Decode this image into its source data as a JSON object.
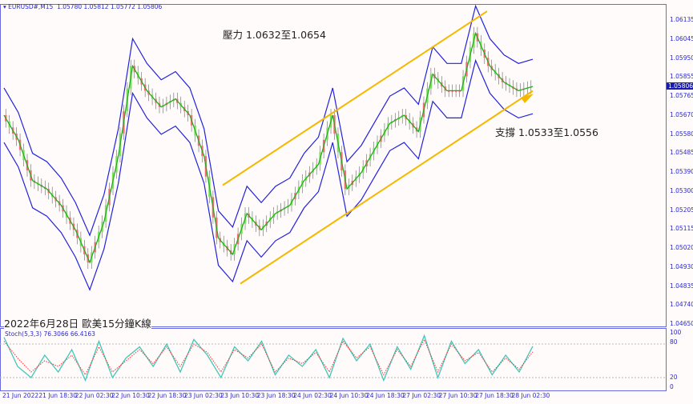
{
  "header": {
    "symbol": "EURUSD#,M15",
    "ohlc": "1.05780 1.05812 1.05772 1.05806"
  },
  "annotations": {
    "resistance": "壓力 1.0632至1.0654",
    "support": "支撐 1.0533至1.0556",
    "caption": "2022年6月28日 歐美15分鐘K線"
  },
  "stoch_label": "Stoch(5,3,3) 76.3066 66.4163",
  "current_price": "1.05806",
  "colors": {
    "price": "#22aa22",
    "bands": "#2222dd",
    "channel": "#f5b800",
    "stoch_main": "#40c8b8",
    "stoch_signal": "#ff3030",
    "axis": "#6a6ae0"
  },
  "chart_data": [
    {
      "type": "line",
      "title": "EURUSD#,M15",
      "price_ticks": [
        "1.06135",
        "1.06045",
        "1.05950",
        "1.05855",
        "1.05765",
        "1.05670",
        "1.05580",
        "1.05485",
        "1.05390",
        "1.05300",
        "1.05205",
        "1.05115",
        "1.05020",
        "1.04930",
        "1.04835",
        "1.04740",
        "1.04650"
      ],
      "ylim": [
        1.0465,
        1.06135
      ],
      "time_ticks": [
        "21 Jun 2022",
        "21 Jun 18:30",
        "22 Jun 02:30",
        "22 Jun 10:30",
        "22 Jun 18:30",
        "23 Jun 02:30",
        "23 Jun 10:30",
        "23 Jun 18:30",
        "24 Jun 02:30",
        "24 Jun 10:30",
        "24 Jun 18:30",
        "27 Jun 02:30",
        "27 Jun 10:30",
        "27 Jun 18:30",
        "28 Jun 02:30"
      ],
      "close": [
        1.05654,
        1.05537,
        1.05342,
        1.05302,
        1.05224,
        1.05107,
        1.04951,
        1.05146,
        1.05459,
        1.05889,
        1.05771,
        1.05693,
        1.05732,
        1.05654,
        1.05459,
        1.05068,
        1.0499,
        1.05185,
        1.05107,
        1.05185,
        1.05224,
        1.05342,
        1.05419,
        1.05654,
        1.05302,
        1.0538,
        1.05498,
        1.05615,
        1.05654,
        1.05576,
        1.0585,
        1.05771,
        1.05771,
        1.06045,
        1.05889,
        1.05811,
        1.05771,
        1.05791
      ],
      "bollinger_band_width": 0.0013,
      "channel": {
        "upper": [
          1.0532,
          1.0615
        ],
        "lower": [
          1.0485,
          1.0577
        ]
      }
    },
    {
      "type": "line",
      "title": "Stoch(5,3,3)",
      "ylim": [
        0,
        100
      ],
      "levels": [
        20,
        80
      ],
      "ticks": [
        "100",
        "80",
        "20",
        "0"
      ],
      "main": [
        92,
        40,
        20,
        60,
        30,
        70,
        15,
        85,
        20,
        55,
        75,
        40,
        80,
        30,
        88,
        60,
        20,
        75,
        50,
        85,
        25,
        60,
        40,
        70,
        20,
        90,
        50,
        80,
        15,
        75,
        35,
        95,
        20,
        85,
        45,
        70,
        25,
        60,
        30,
        76
      ],
      "signal": [
        85,
        55,
        30,
        50,
        40,
        60,
        25,
        75,
        30,
        50,
        70,
        45,
        75,
        40,
        80,
        65,
        30,
        70,
        55,
        80,
        30,
        55,
        45,
        65,
        30,
        85,
        55,
        75,
        25,
        70,
        40,
        88,
        30,
        80,
        50,
        65,
        30,
        55,
        35,
        66
      ]
    }
  ]
}
